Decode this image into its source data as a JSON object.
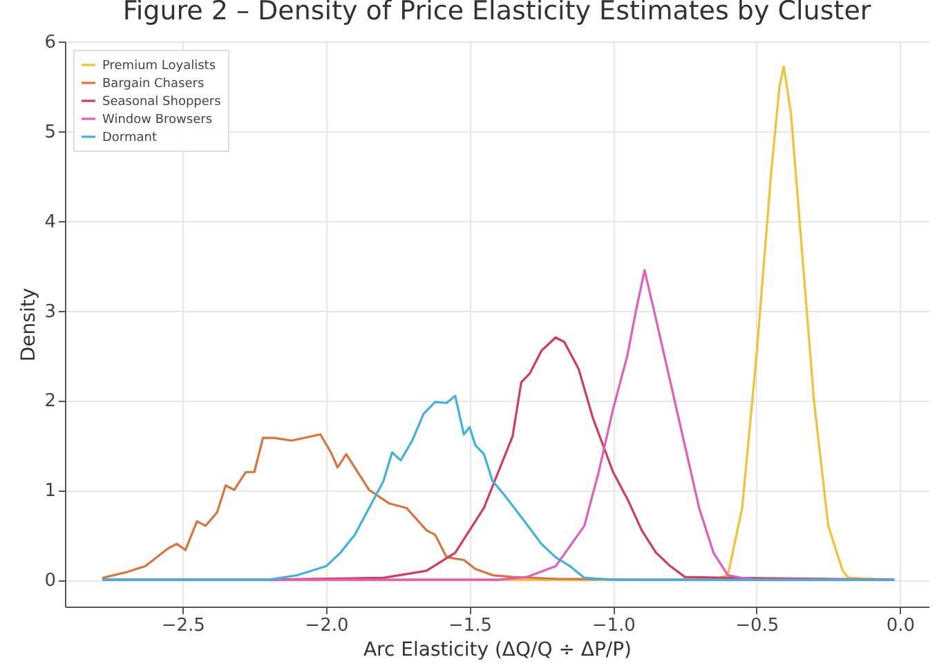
{
  "chart_data": {
    "type": "line",
    "title": "Figure 2 – Density of Price Elasticity Estimates by Cluster",
    "xlabel": "Arc Elasticity (ΔQ/Q ÷ ΔP/P)",
    "ylabel": "Density",
    "xlim": [
      -2.91,
      0.1
    ],
    "ylim": [
      -0.3,
      6
    ],
    "xticks": [
      {
        "value": -2.5,
        "label": "−2.5"
      },
      {
        "value": -2.0,
        "label": "−2.0"
      },
      {
        "value": -1.5,
        "label": "−1.5"
      },
      {
        "value": -1.0,
        "label": "−1.0"
      },
      {
        "value": -0.5,
        "label": "−0.5"
      },
      {
        "value": 0,
        "label": "0.0"
      }
    ],
    "yticks": [
      0,
      1,
      2,
      3,
      4,
      5,
      6
    ],
    "grid": true,
    "legend": "top left",
    "marker": "none",
    "line_style": "solid",
    "series": [
      {
        "name": "Premium Loyalists",
        "color": "#f2c12e",
        "x": [
          -2.78,
          -0.65,
          -0.6,
          -0.55,
          -0.5,
          -0.45,
          -0.42,
          -0.405,
          -0.38,
          -0.35,
          -0.3,
          -0.25,
          -0.2,
          -0.18,
          -0.02
        ],
        "values": [
          0,
          0,
          0.05,
          0.8,
          2.5,
          4.5,
          5.5,
          5.72,
          5.2,
          4.0,
          2.0,
          0.6,
          0.1,
          0.02,
          0
        ]
      },
      {
        "name": "Bargain Chasers",
        "color": "#d9733a",
        "x": [
          -2.78,
          -2.7,
          -2.63,
          -2.55,
          -2.52,
          -2.49,
          -2.45,
          -2.42,
          -2.38,
          -2.35,
          -2.32,
          -2.28,
          -2.25,
          -2.22,
          -2.18,
          -2.12,
          -2.02,
          -1.98,
          -1.96,
          -1.93,
          -1.85,
          -1.78,
          -1.72,
          -1.65,
          -1.62,
          -1.58,
          -1.52,
          -1.48,
          -1.42,
          -1.35,
          -1.2,
          -0.9,
          -0.02
        ],
        "values": [
          0.02,
          0.08,
          0.15,
          0.35,
          0.4,
          0.33,
          0.65,
          0.6,
          0.75,
          1.05,
          1.0,
          1.2,
          1.2,
          1.58,
          1.58,
          1.55,
          1.62,
          1.4,
          1.25,
          1.4,
          1.0,
          0.85,
          0.8,
          0.55,
          0.5,
          0.25,
          0.22,
          0.12,
          0.05,
          0.03,
          0.01,
          0,
          0
        ]
      },
      {
        "name": "Seasonal Shoppers",
        "color": "#d43a5c",
        "x": [
          -2.78,
          -2.2,
          -1.8,
          -1.65,
          -1.55,
          -1.45,
          -1.4,
          -1.35,
          -1.32,
          -1.29,
          -1.25,
          -1.2,
          -1.17,
          -1.12,
          -1.07,
          -1.0,
          -0.95,
          -0.9,
          -0.85,
          -0.8,
          -0.75,
          -0.6,
          -0.02
        ],
        "values": [
          0,
          0,
          0.02,
          0.1,
          0.3,
          0.8,
          1.2,
          1.6,
          2.2,
          2.3,
          2.55,
          2.7,
          2.65,
          2.35,
          1.8,
          1.2,
          0.9,
          0.55,
          0.3,
          0.15,
          0.03,
          0.02,
          0
        ]
      },
      {
        "name": "Window Browsers",
        "color": "#e45bbf",
        "x": [
          -2.78,
          -1.4,
          -1.3,
          -1.2,
          -1.1,
          -1.05,
          -1.0,
          -0.95,
          -0.92,
          -0.89,
          -0.85,
          -0.8,
          -0.75,
          -0.7,
          -0.65,
          -0.6,
          -0.55,
          -0.5,
          -0.02
        ],
        "values": [
          0,
          0,
          0.03,
          0.15,
          0.6,
          1.2,
          1.9,
          2.5,
          3.0,
          3.45,
          2.9,
          2.2,
          1.5,
          0.8,
          0.3,
          0.05,
          0.02,
          0,
          0
        ]
      },
      {
        "name": "Dormant",
        "color": "#3fb0e0",
        "x": [
          -2.78,
          -2.2,
          -2.1,
          -2.0,
          -1.95,
          -1.9,
          -1.85,
          -1.8,
          -1.77,
          -1.74,
          -1.7,
          -1.66,
          -1.62,
          -1.58,
          -1.55,
          -1.52,
          -1.5,
          -1.48,
          -1.45,
          -1.42,
          -1.38,
          -1.32,
          -1.25,
          -1.2,
          -1.15,
          -1.1,
          -1.0,
          -0.02
        ],
        "values": [
          0,
          0,
          0.05,
          0.15,
          0.3,
          0.5,
          0.8,
          1.1,
          1.42,
          1.33,
          1.55,
          1.85,
          1.98,
          1.97,
          2.05,
          1.62,
          1.7,
          1.5,
          1.4,
          1.1,
          0.95,
          0.7,
          0.4,
          0.25,
          0.15,
          0.02,
          0,
          0
        ]
      }
    ]
  }
}
